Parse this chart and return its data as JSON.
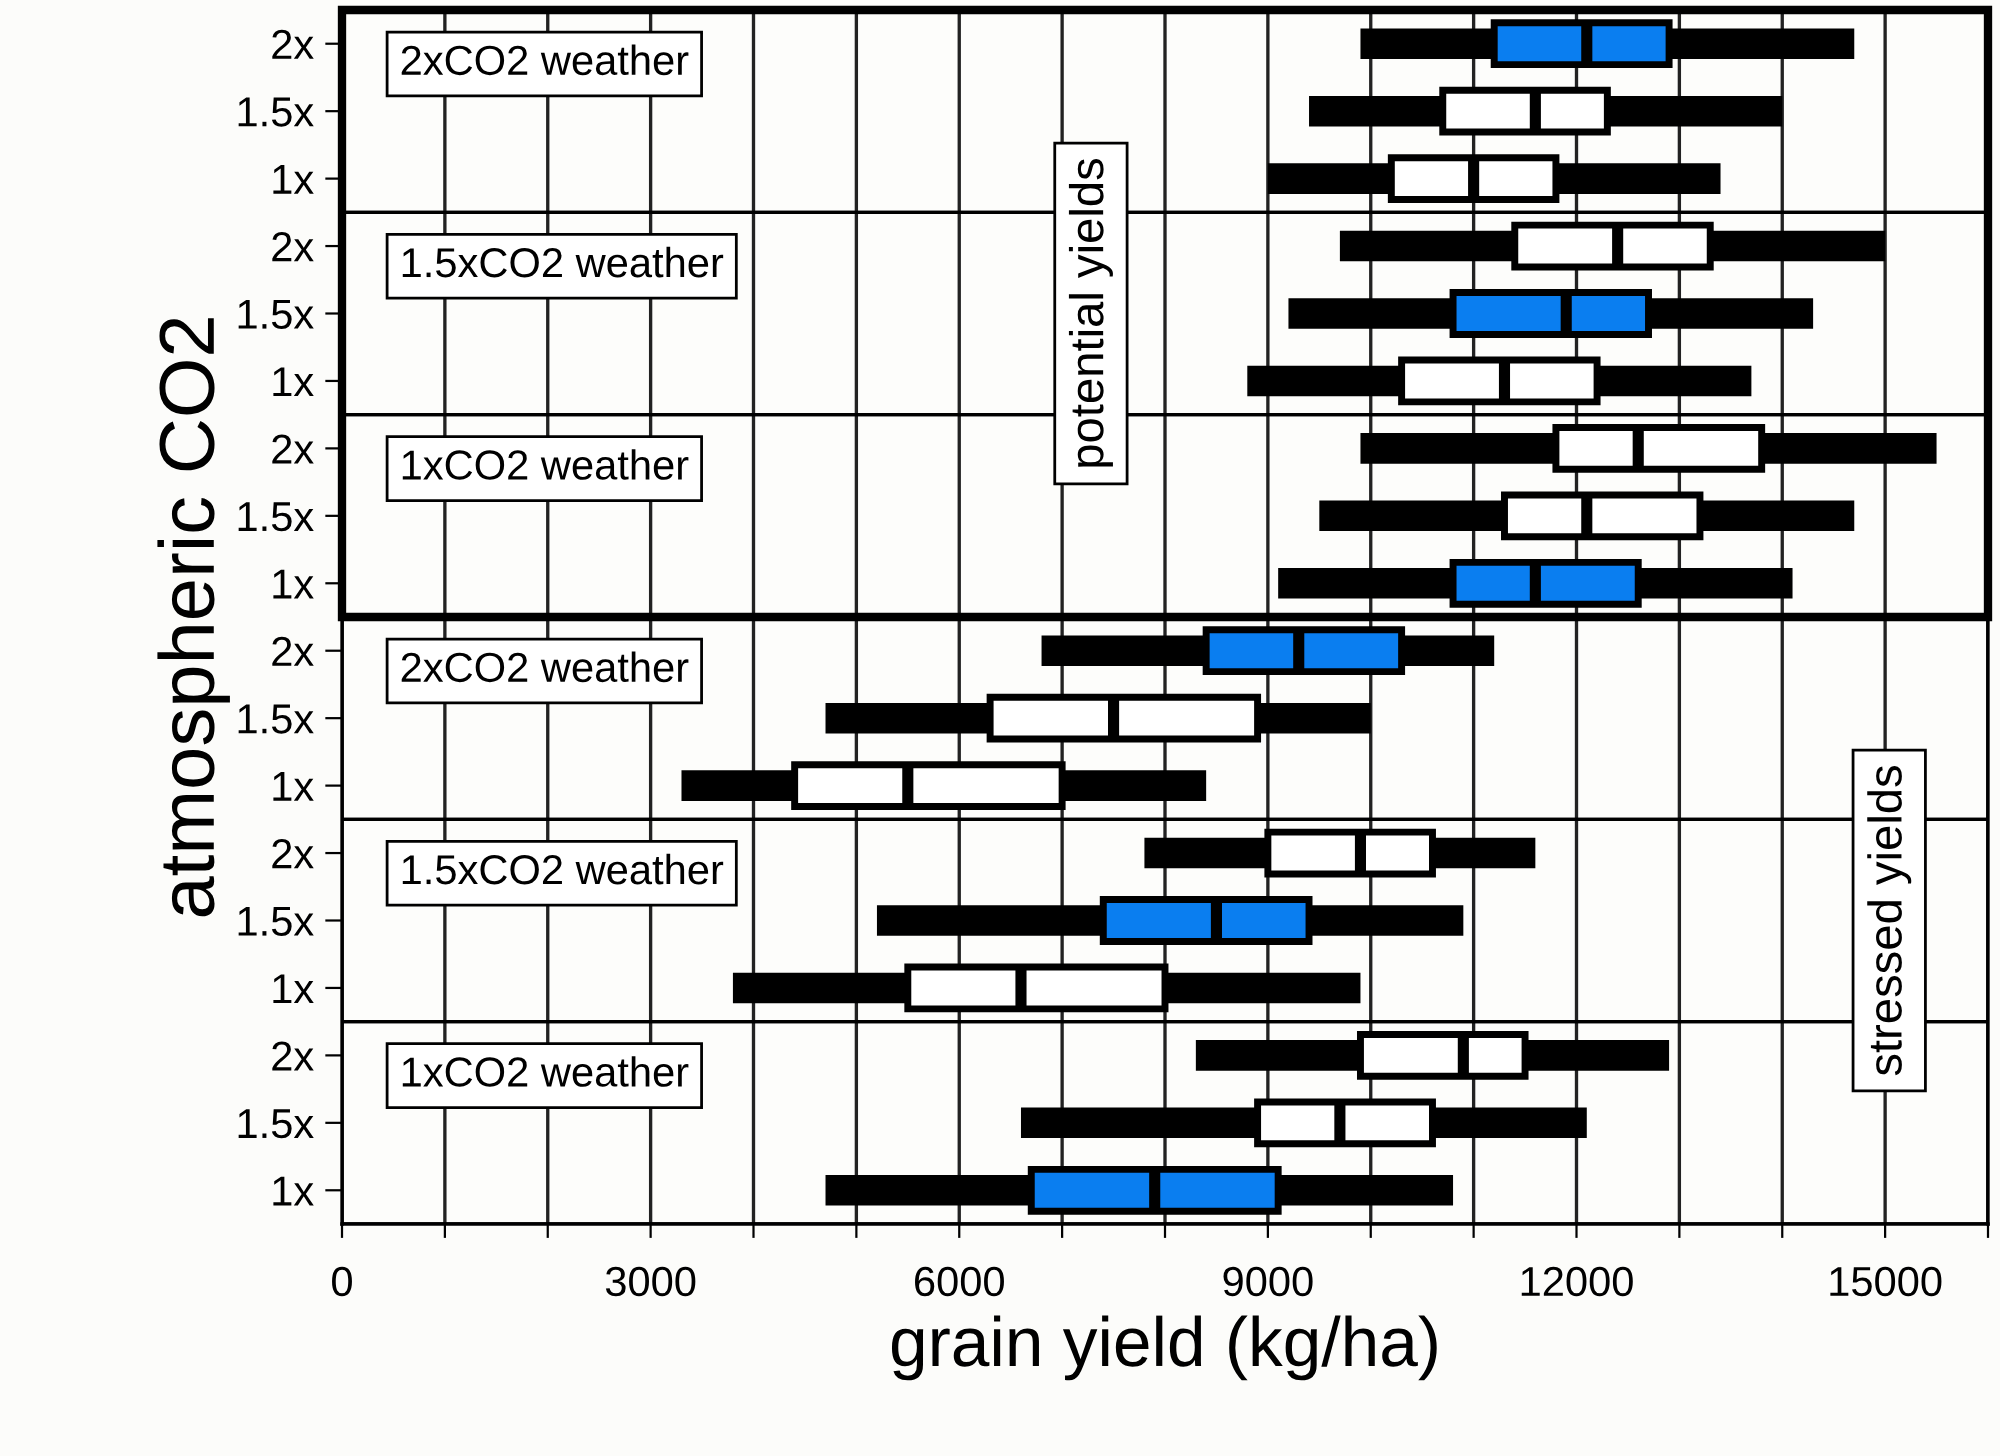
{
  "chart_data": {
    "type": "box",
    "orientation": "horizontal",
    "xlabel": "grain yield (kg/ha)",
    "ylabel": "atmospheric CO2",
    "categories": [
      "2x",
      "1.5x",
      "1x",
      "2x",
      "1.5x",
      "1x",
      "2x",
      "1.5x",
      "1x",
      "2x",
      "1.5x",
      "1x",
      "2x",
      "1.5x",
      "1x",
      "2x",
      "1.5x",
      "1x"
    ],
    "annotations": [
      "2xCO2 weather",
      "1.5xCO2 weather",
      "1xCO2 weather",
      "2xCO2 weather",
      "1.5xCO2 weather",
      "1xCO2 weather",
      "potential yields",
      "stressed yields"
    ],
    "xlim": [
      0,
      16000
    ],
    "xticks": [
      0,
      {
        "value": 1000,
        "label": null
      },
      {
        "value": 2000,
        "label": null
      },
      3000,
      {
        "value": 4000,
        "label": null
      },
      {
        "value": 5000,
        "label": null
      },
      6000,
      {
        "value": 7000,
        "label": null
      },
      {
        "value": 8000,
        "label": null
      },
      9000,
      {
        "value": 10000,
        "label": null
      },
      {
        "value": 11000,
        "label": null
      },
      12000,
      {
        "value": 13000,
        "label": null
      },
      {
        "value": 14000,
        "label": null
      },
      15000,
      {
        "value": 16000,
        "label": null
      }
    ],
    "grid": "x",
    "colors": [
      "#0a7ef0",
      "#ffffff",
      "#ffffff",
      "#ffffff",
      "#0a7ef0",
      "#ffffff",
      "#ffffff",
      "#ffffff",
      "#0a7ef0",
      "#0a7ef0",
      "#ffffff",
      "#ffffff",
      "#ffffff",
      "#0a7ef0",
      "#ffffff",
      "#ffffff",
      "#ffffff",
      "#0a7ef0"
    ],
    "boxes": [
      {
        "low": 9900,
        "q1": 11200,
        "median": 12100,
        "q3": 12900,
        "high": 14700
      },
      {
        "low": 9400,
        "q1": 10700,
        "median": 11600,
        "q3": 12300,
        "high": 14000
      },
      {
        "low": 9000,
        "q1": 10200,
        "median": 11000,
        "q3": 11800,
        "high": 13400
      },
      {
        "low": 9700,
        "q1": 11400,
        "median": 12400,
        "q3": 13300,
        "high": 15000
      },
      {
        "low": 9200,
        "q1": 10800,
        "median": 11900,
        "q3": 12700,
        "high": 14300
      },
      {
        "low": 8800,
        "q1": 10300,
        "median": 11300,
        "q3": 12200,
        "high": 13700
      },
      {
        "low": 9900,
        "q1": 11800,
        "median": 12600,
        "q3": 13800,
        "high": 15500
      },
      {
        "low": 9500,
        "q1": 11300,
        "median": 12100,
        "q3": 13200,
        "high": 14700
      },
      {
        "low": 9100,
        "q1": 10800,
        "median": 11600,
        "q3": 12600,
        "high": 14100
      },
      {
        "low": 6800,
        "q1": 8400,
        "median": 9300,
        "q3": 10300,
        "high": 11200
      },
      {
        "low": 4700,
        "q1": 6300,
        "median": 7500,
        "q3": 8900,
        "high": 10000
      },
      {
        "low": 3300,
        "q1": 4400,
        "median": 5500,
        "q3": 7000,
        "high": 8400
      },
      {
        "low": 7800,
        "q1": 9000,
        "median": 9900,
        "q3": 10600,
        "high": 11600
      },
      {
        "low": 5200,
        "q1": 7400,
        "median": 8500,
        "q3": 9400,
        "high": 10900
      },
      {
        "low": 3800,
        "q1": 5500,
        "median": 6600,
        "q3": 8000,
        "high": 9900
      },
      {
        "low": 8300,
        "q1": 9900,
        "median": 10900,
        "q3": 11500,
        "high": 12900
      },
      {
        "low": 6600,
        "q1": 8900,
        "median": 9700,
        "q3": 10600,
        "high": 12100
      },
      {
        "low": 4700,
        "q1": 6700,
        "median": 7900,
        "q3": 9100,
        "high": 10800
      }
    ]
  }
}
